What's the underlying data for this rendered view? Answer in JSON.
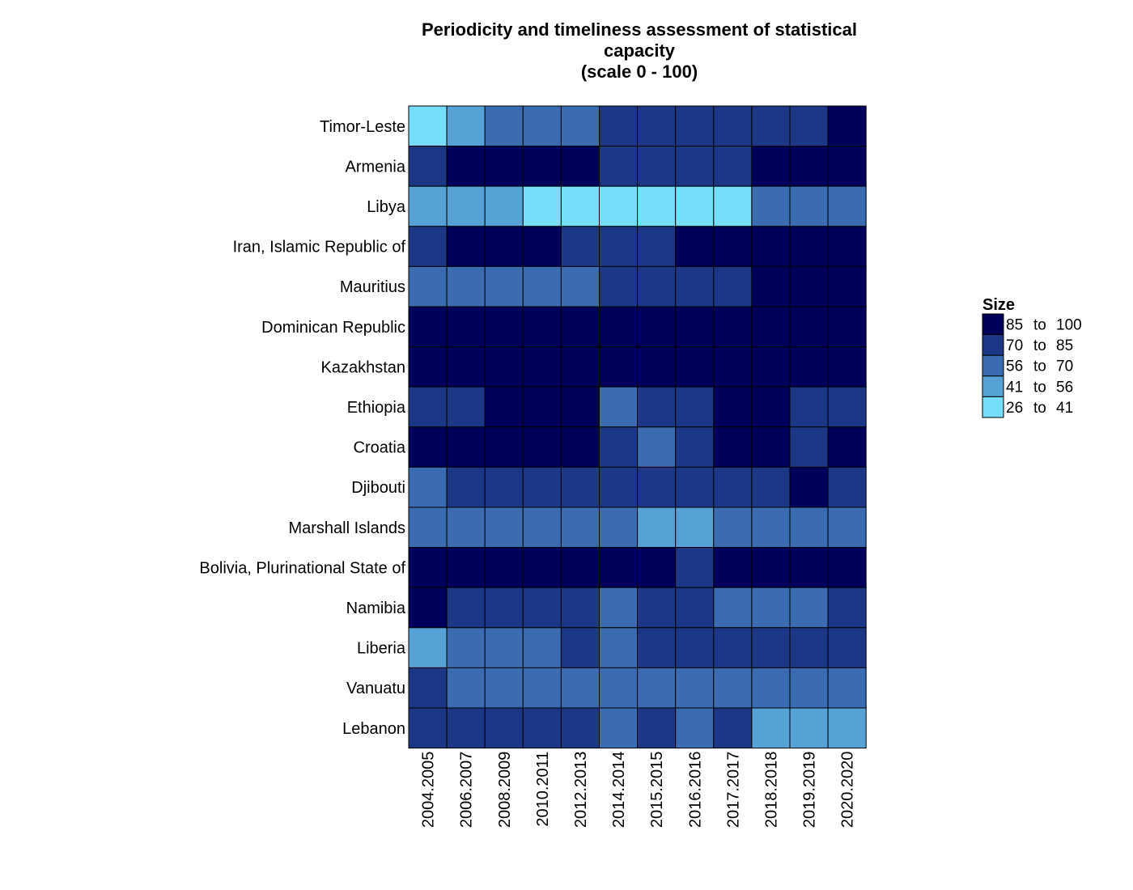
{
  "chart_data": {
    "type": "heatmap",
    "title": [
      "Periodicity and timeliness assessment of statistical",
      "capacity",
      "(scale 0 - 100)"
    ],
    "xlabel": "",
    "ylabel": "",
    "columns": [
      "2004.2005",
      "2006.2007",
      "2008.2009",
      "2010.2011",
      "2012.2013",
      "2014.2014",
      "2015.2015",
      "2016.2016",
      "2017.2017",
      "2018.2018",
      "2019.2019",
      "2020.2020"
    ],
    "rows": [
      "Timor-Leste",
      "Armenia",
      "Libya",
      "Iran, Islamic Republic of",
      "Mauritius",
      "Dominican Republic",
      "Kazakhstan",
      "Ethiopia",
      "Croatia",
      "Djibouti",
      "Marshall Islands",
      "Bolivia, Plurinational State of",
      "Namibia",
      "Liberia",
      "Vanuatu",
      "Lebanon"
    ],
    "values": [
      [
        30,
        50,
        63,
        63,
        63,
        77,
        77,
        77,
        77,
        77,
        77,
        93
      ],
      [
        77,
        93,
        93,
        93,
        93,
        77,
        77,
        77,
        77,
        93,
        93,
        93
      ],
      [
        50,
        50,
        50,
        30,
        30,
        30,
        30,
        30,
        30,
        63,
        63,
        63
      ],
      [
        77,
        93,
        93,
        93,
        77,
        77,
        77,
        93,
        93,
        93,
        93,
        93
      ],
      [
        63,
        63,
        63,
        63,
        63,
        77,
        77,
        77,
        77,
        93,
        93,
        93
      ],
      [
        93,
        93,
        93,
        93,
        93,
        93,
        93,
        93,
        93,
        93,
        93,
        93
      ],
      [
        93,
        93,
        93,
        93,
        93,
        93,
        93,
        93,
        93,
        93,
        93,
        93
      ],
      [
        77,
        77,
        93,
        93,
        93,
        63,
        77,
        77,
        93,
        93,
        77,
        77
      ],
      [
        93,
        93,
        93,
        93,
        93,
        77,
        63,
        77,
        93,
        93,
        77,
        93
      ],
      [
        63,
        77,
        77,
        77,
        77,
        77,
        77,
        77,
        77,
        77,
        93,
        77
      ],
      [
        63,
        63,
        63,
        63,
        63,
        63,
        50,
        50,
        63,
        63,
        63,
        63
      ],
      [
        93,
        93,
        93,
        93,
        93,
        93,
        93,
        77,
        93,
        93,
        93,
        93
      ],
      [
        93,
        77,
        77,
        77,
        77,
        63,
        77,
        77,
        63,
        63,
        63,
        77
      ],
      [
        50,
        63,
        63,
        63,
        77,
        63,
        77,
        77,
        77,
        77,
        77,
        77
      ],
      [
        77,
        63,
        63,
        63,
        63,
        63,
        63,
        63,
        63,
        63,
        63,
        63
      ],
      [
        77,
        77,
        77,
        77,
        77,
        63,
        77,
        63,
        77,
        50,
        50,
        50
      ]
    ],
    "legend": {
      "title": "Size",
      "position": "right",
      "bins": [
        {
          "min": 85,
          "max": 100,
          "label_from": "85",
          "label_to": "to",
          "label_max": "100",
          "color": "#00005a"
        },
        {
          "min": 70,
          "max": 85,
          "label_from": "70",
          "label_to": "to",
          "label_max": "85",
          "color": "#1c3785"
        },
        {
          "min": 56,
          "max": 70,
          "label_from": "56",
          "label_to": "to",
          "label_max": "70",
          "color": "#3b6bb0"
        },
        {
          "min": 41,
          "max": 56,
          "label_from": "41",
          "label_to": "to",
          "label_max": "56",
          "color": "#56a2d6"
        },
        {
          "min": 26,
          "max": 41,
          "label_from": "26",
          "label_to": "to",
          "label_max": "41",
          "color": "#76ddfa"
        }
      ]
    }
  }
}
